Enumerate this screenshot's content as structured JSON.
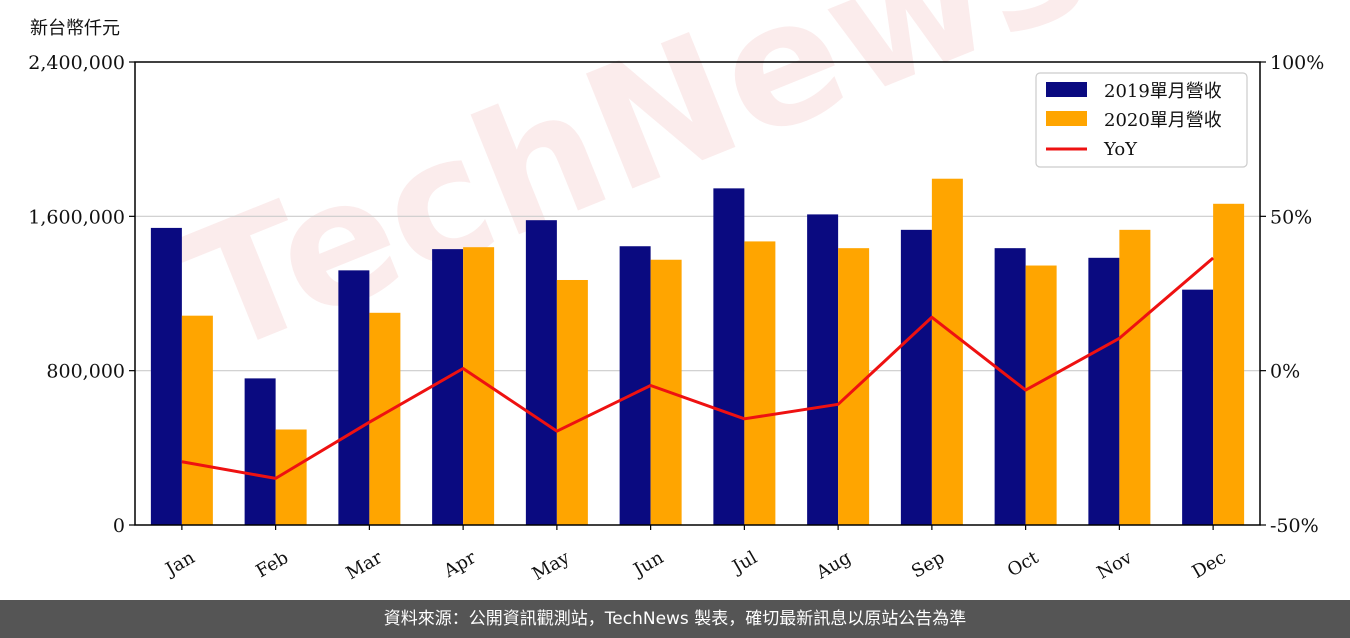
{
  "unit_label": "新台幣仟元",
  "watermark": "TechNews",
  "footer_text": "資料來源：公開資訊觀測站，TechNews 製表，確切最新訊息以原站公告為準",
  "colors": {
    "s2019": "#0a0a80",
    "s2020": "#ffa500",
    "yoy": "#ee1111",
    "grid": "#cccccc"
  },
  "chart_data": {
    "type": "bar",
    "categories": [
      "Jan",
      "Feb",
      "Mar",
      "Apr",
      "May",
      "Jun",
      "Jul",
      "Aug",
      "Sep",
      "Oct",
      "Nov",
      "Dec"
    ],
    "series": [
      {
        "name": "2019單月營收",
        "values": [
          1540000,
          760000,
          1320000,
          1430000,
          1580000,
          1445000,
          1745000,
          1610000,
          1530000,
          1435000,
          1385000,
          1220000
        ]
      },
      {
        "name": "2020單月營收",
        "values": [
          1085000,
          495000,
          1100000,
          1440000,
          1270000,
          1375000,
          1470000,
          1435000,
          1795000,
          1345000,
          1530000,
          1665000
        ]
      }
    ],
    "line_series": {
      "name": "YoY",
      "axis": "right",
      "values": [
        -29.5,
        -34.9,
        -16.7,
        0.7,
        -19.6,
        -4.8,
        -15.6,
        -10.9,
        17.3,
        -6.3,
        10.5,
        36.5
      ]
    },
    "ylim": [
      0,
      2400000
    ],
    "yticks": [
      "0",
      "800,000",
      "1,600,000",
      "2,400,000"
    ],
    "y2lim": [
      -50,
      100
    ],
    "y2ticks": [
      "-50%",
      "0%",
      "50%",
      "100%"
    ],
    "grid": true,
    "legend": "top-right"
  }
}
